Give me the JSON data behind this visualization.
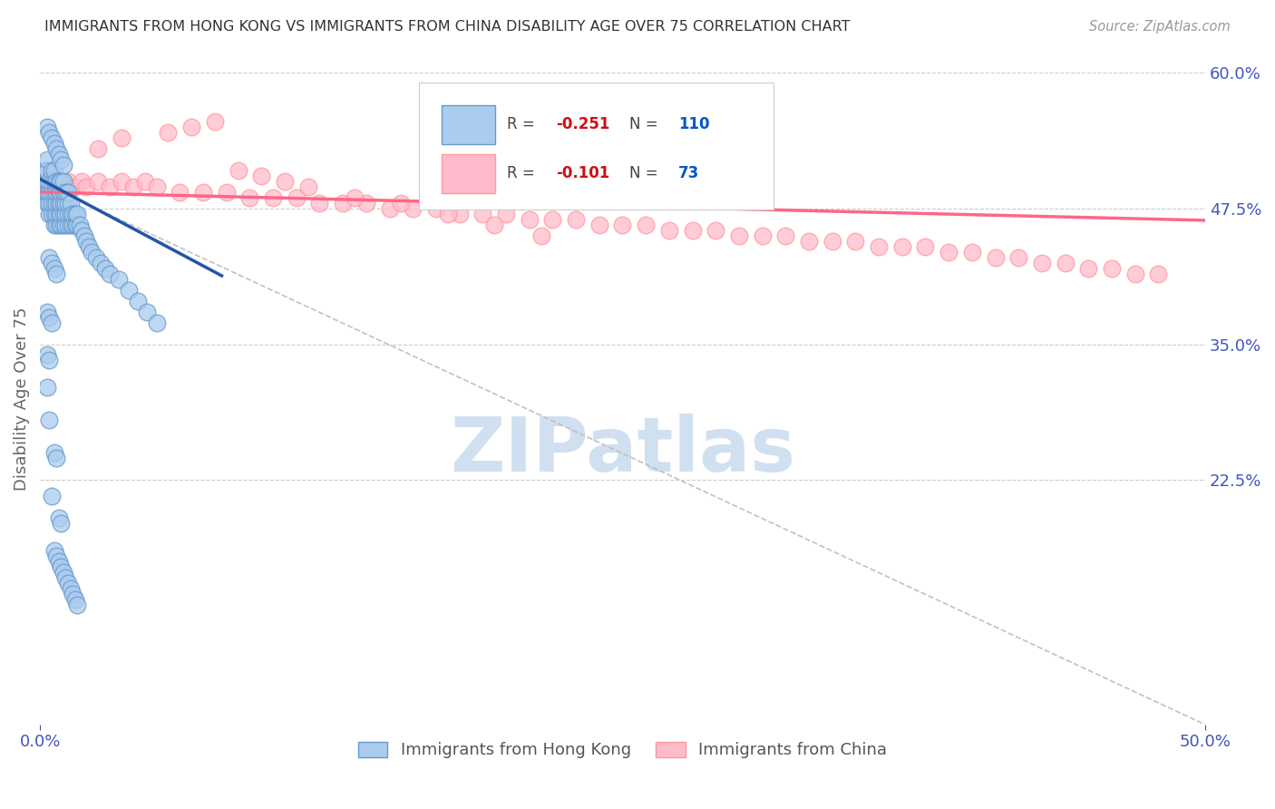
{
  "title": "IMMIGRANTS FROM HONG KONG VS IMMIGRANTS FROM CHINA DISABILITY AGE OVER 75 CORRELATION CHART",
  "source": "Source: ZipAtlas.com",
  "ylabel": "Disability Age Over 75",
  "xlim": [
    0.0,
    0.5
  ],
  "ylim": [
    0.0,
    0.6
  ],
  "ytick_values": [
    0.6,
    0.475,
    0.35,
    0.225
  ],
  "background_color": "#ffffff",
  "grid_color": "#cccccc",
  "hk_color_face": "#aaccee",
  "hk_color_edge": "#6699cc",
  "china_color_face": "#ffbbcc",
  "china_color_edge": "#ff9999",
  "hk_line_color": "#2255aa",
  "china_line_color": "#ff6688",
  "diag_color": "#bbbbbb",
  "hk_R": "-0.251",
  "hk_N": "110",
  "china_R": "-0.101",
  "china_N": "73",
  "R_color": "#cc1111",
  "N_color": "#0055cc",
  "legend_label_hk": "Immigrants from Hong Kong",
  "legend_label_china": "Immigrants from China",
  "title_color": "#333333",
  "source_color": "#999999",
  "axis_tick_color": "#4455bb",
  "ylabel_color": "#666666",
  "watermark": "ZIPatlas",
  "watermark_color": "#d0e0f0",
  "hk_line_start_x": 0.0,
  "hk_line_start_y": 0.502,
  "hk_line_end_x": 0.078,
  "hk_line_end_y": 0.413,
  "china_line_start_x": 0.0,
  "china_line_start_y": 0.49,
  "china_line_end_x": 0.5,
  "china_line_end_y": 0.464,
  "hk_scatter_x": [
    0.002,
    0.002,
    0.002,
    0.003,
    0.003,
    0.003,
    0.003,
    0.003,
    0.004,
    0.004,
    0.004,
    0.004,
    0.005,
    0.005,
    0.005,
    0.005,
    0.005,
    0.006,
    0.006,
    0.006,
    0.006,
    0.006,
    0.006,
    0.007,
    0.007,
    0.007,
    0.007,
    0.007,
    0.008,
    0.008,
    0.008,
    0.008,
    0.008,
    0.009,
    0.009,
    0.009,
    0.009,
    0.009,
    0.01,
    0.01,
    0.01,
    0.01,
    0.01,
    0.011,
    0.011,
    0.011,
    0.011,
    0.012,
    0.012,
    0.012,
    0.012,
    0.013,
    0.013,
    0.013,
    0.014,
    0.014,
    0.015,
    0.015,
    0.016,
    0.016,
    0.017,
    0.018,
    0.019,
    0.02,
    0.021,
    0.022,
    0.024,
    0.026,
    0.028,
    0.03,
    0.034,
    0.038,
    0.042,
    0.046,
    0.05,
    0.003,
    0.004,
    0.005,
    0.006,
    0.007,
    0.008,
    0.009,
    0.01,
    0.004,
    0.005,
    0.006,
    0.007,
    0.003,
    0.004,
    0.005,
    0.003,
    0.004,
    0.003,
    0.004,
    0.006,
    0.007,
    0.005,
    0.008,
    0.009,
    0.006,
    0.007,
    0.008,
    0.009,
    0.01,
    0.011,
    0.012,
    0.013,
    0.014,
    0.015,
    0.016
  ],
  "hk_scatter_y": [
    0.49,
    0.5,
    0.51,
    0.48,
    0.49,
    0.5,
    0.51,
    0.52,
    0.47,
    0.48,
    0.49,
    0.5,
    0.47,
    0.48,
    0.49,
    0.5,
    0.51,
    0.46,
    0.47,
    0.48,
    0.49,
    0.5,
    0.51,
    0.46,
    0.47,
    0.48,
    0.49,
    0.5,
    0.46,
    0.47,
    0.48,
    0.49,
    0.5,
    0.46,
    0.47,
    0.48,
    0.49,
    0.5,
    0.46,
    0.47,
    0.48,
    0.49,
    0.5,
    0.46,
    0.47,
    0.48,
    0.49,
    0.46,
    0.47,
    0.48,
    0.49,
    0.46,
    0.47,
    0.48,
    0.46,
    0.47,
    0.46,
    0.47,
    0.46,
    0.47,
    0.46,
    0.455,
    0.45,
    0.445,
    0.44,
    0.435,
    0.43,
    0.425,
    0.42,
    0.415,
    0.41,
    0.4,
    0.39,
    0.38,
    0.37,
    0.55,
    0.545,
    0.54,
    0.535,
    0.53,
    0.525,
    0.52,
    0.515,
    0.43,
    0.425,
    0.42,
    0.415,
    0.38,
    0.375,
    0.37,
    0.34,
    0.335,
    0.31,
    0.28,
    0.25,
    0.245,
    0.21,
    0.19,
    0.185,
    0.16,
    0.155,
    0.15,
    0.145,
    0.14,
    0.135,
    0.13,
    0.125,
    0.12,
    0.115,
    0.11
  ],
  "china_scatter_x": [
    0.003,
    0.004,
    0.005,
    0.006,
    0.008,
    0.01,
    0.012,
    0.015,
    0.018,
    0.02,
    0.025,
    0.03,
    0.035,
    0.04,
    0.045,
    0.05,
    0.06,
    0.07,
    0.08,
    0.09,
    0.1,
    0.11,
    0.12,
    0.13,
    0.14,
    0.15,
    0.16,
    0.17,
    0.18,
    0.19,
    0.2,
    0.21,
    0.22,
    0.23,
    0.24,
    0.25,
    0.26,
    0.27,
    0.28,
    0.29,
    0.3,
    0.31,
    0.32,
    0.33,
    0.34,
    0.35,
    0.36,
    0.37,
    0.38,
    0.39,
    0.4,
    0.41,
    0.42,
    0.43,
    0.44,
    0.45,
    0.46,
    0.47,
    0.48,
    0.025,
    0.035,
    0.055,
    0.065,
    0.075,
    0.085,
    0.095,
    0.105,
    0.115,
    0.135,
    0.155,
    0.175,
    0.195,
    0.215
  ],
  "china_scatter_y": [
    0.49,
    0.495,
    0.5,
    0.495,
    0.5,
    0.495,
    0.5,
    0.495,
    0.5,
    0.495,
    0.5,
    0.495,
    0.5,
    0.495,
    0.5,
    0.495,
    0.49,
    0.49,
    0.49,
    0.485,
    0.485,
    0.485,
    0.48,
    0.48,
    0.48,
    0.475,
    0.475,
    0.475,
    0.47,
    0.47,
    0.47,
    0.465,
    0.465,
    0.465,
    0.46,
    0.46,
    0.46,
    0.455,
    0.455,
    0.455,
    0.45,
    0.45,
    0.45,
    0.445,
    0.445,
    0.445,
    0.44,
    0.44,
    0.44,
    0.435,
    0.435,
    0.43,
    0.43,
    0.425,
    0.425,
    0.42,
    0.42,
    0.415,
    0.415,
    0.53,
    0.54,
    0.545,
    0.55,
    0.555,
    0.51,
    0.505,
    0.5,
    0.495,
    0.485,
    0.48,
    0.47,
    0.46,
    0.45
  ]
}
